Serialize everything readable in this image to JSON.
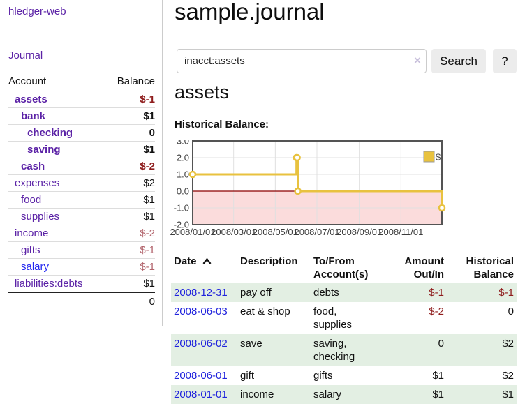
{
  "colors": {
    "brand_purple": "#5b22a6",
    "link_blue": "#2125f0",
    "date_blue": "#2023dd",
    "negative_strong": "#8f1d1d",
    "negative_muted": "#b2646c",
    "row_highlight_green": "#e3efe3",
    "chart_gold": "#e8c23f",
    "chart_negative_bg": "#fbdcdc",
    "chart_zero_line": "#8b0000"
  },
  "sidebar": {
    "brand": "hledger-web",
    "journal_label": "Journal",
    "accounts_table": {
      "headers": [
        "Account",
        "Balance"
      ],
      "rows": [
        {
          "account": "assets",
          "balance": "$-1",
          "indent": 0,
          "bold": true,
          "blue": false,
          "balance_class": "neg"
        },
        {
          "account": "bank",
          "balance": "$1",
          "indent": 1,
          "bold": true,
          "blue": false,
          "balance_class": ""
        },
        {
          "account": "checking",
          "balance": "0",
          "indent": 2,
          "bold": true,
          "blue": false,
          "balance_class": ""
        },
        {
          "account": "saving",
          "balance": "$1",
          "indent": 2,
          "bold": true,
          "blue": false,
          "balance_class": ""
        },
        {
          "account": "cash",
          "balance": "$-2",
          "indent": 1,
          "bold": true,
          "blue": false,
          "balance_class": "neg"
        },
        {
          "account": "expenses",
          "balance": "$2",
          "indent": 0,
          "bold": false,
          "blue": false,
          "balance_class": ""
        },
        {
          "account": "food",
          "balance": "$1",
          "indent": 1,
          "bold": false,
          "blue": false,
          "balance_class": ""
        },
        {
          "account": "supplies",
          "balance": "$1",
          "indent": 1,
          "bold": false,
          "blue": false,
          "balance_class": ""
        },
        {
          "account": "income",
          "balance": "$-2",
          "indent": 0,
          "bold": false,
          "blue": false,
          "balance_class": "negm"
        },
        {
          "account": "gifts",
          "balance": "$-1",
          "indent": 1,
          "bold": false,
          "blue": false,
          "balance_class": "negm"
        },
        {
          "account": "salary",
          "balance": "$-1",
          "indent": 1,
          "bold": false,
          "blue": true,
          "balance_class": "negm"
        },
        {
          "account": "liabilities:debts",
          "balance": "$1",
          "indent": 0,
          "bold": false,
          "blue": false,
          "balance_class": ""
        }
      ],
      "total": "0"
    }
  },
  "header": {
    "title": "sample.journal"
  },
  "search": {
    "value": "inacct:assets",
    "clear_icon": "×",
    "button_label": "Search",
    "help_label": "?"
  },
  "main": {
    "account_heading": "assets",
    "chart_label": "Historical Balance:"
  },
  "chart_data": {
    "type": "line",
    "style": "step",
    "title": "Historical Balance",
    "series": [
      {
        "name": "$",
        "color": "#e8c23f",
        "points": [
          {
            "date": "2008-01-01",
            "value": 1
          },
          {
            "date": "2008-06-01",
            "value": 2
          },
          {
            "date": "2008-06-02",
            "value": 2
          },
          {
            "date": "2008-06-03",
            "value": 0
          },
          {
            "date": "2008-12-31",
            "value": -1
          }
        ]
      }
    ],
    "x_range": [
      "2008-01-01",
      "2008-12-31"
    ],
    "x_ticks": [
      "2008/01/01",
      "2008/03/01",
      "2008/05/01",
      "2008/07/01",
      "2008/09/01",
      "2008/11/01"
    ],
    "y_ticks": [
      3,
      2,
      1,
      0,
      -1,
      -2
    ],
    "y_tick_labels": [
      "3.0",
      "2.0",
      "1.0",
      "0.0",
      "-1.0",
      "-2.0"
    ],
    "ylim": [
      -2,
      3
    ],
    "grid": true,
    "legend_position": "top-right",
    "negative_region_color": "#fbdcdc",
    "zero_line_color": "#8b0000"
  },
  "register": {
    "headers": {
      "date": "Date",
      "description": "Description",
      "tofrom": "To/From Account(s)",
      "amount": "Amount Out/In",
      "balance": "Historical Balance"
    },
    "rows": [
      {
        "date": "2008-12-31",
        "description": "pay off",
        "accounts": "debts",
        "amount": "$-1",
        "amount_negative": true,
        "balance": "$-1",
        "balance_negative": true
      },
      {
        "date": "2008-06-03",
        "description": "eat & shop",
        "accounts": "food, supplies",
        "amount": "$-2",
        "amount_negative": true,
        "balance": "0",
        "balance_negative": false
      },
      {
        "date": "2008-06-02",
        "description": "save",
        "accounts": "saving, checking",
        "amount": "0",
        "amount_negative": false,
        "balance": "$2",
        "balance_negative": false
      },
      {
        "date": "2008-06-01",
        "description": "gift",
        "accounts": "gifts",
        "amount": "$1",
        "amount_negative": false,
        "balance": "$2",
        "balance_negative": false
      },
      {
        "date": "2008-01-01",
        "description": "income",
        "accounts": "salary",
        "amount": "$1",
        "amount_negative": false,
        "balance": "$1",
        "balance_negative": false
      }
    ]
  }
}
